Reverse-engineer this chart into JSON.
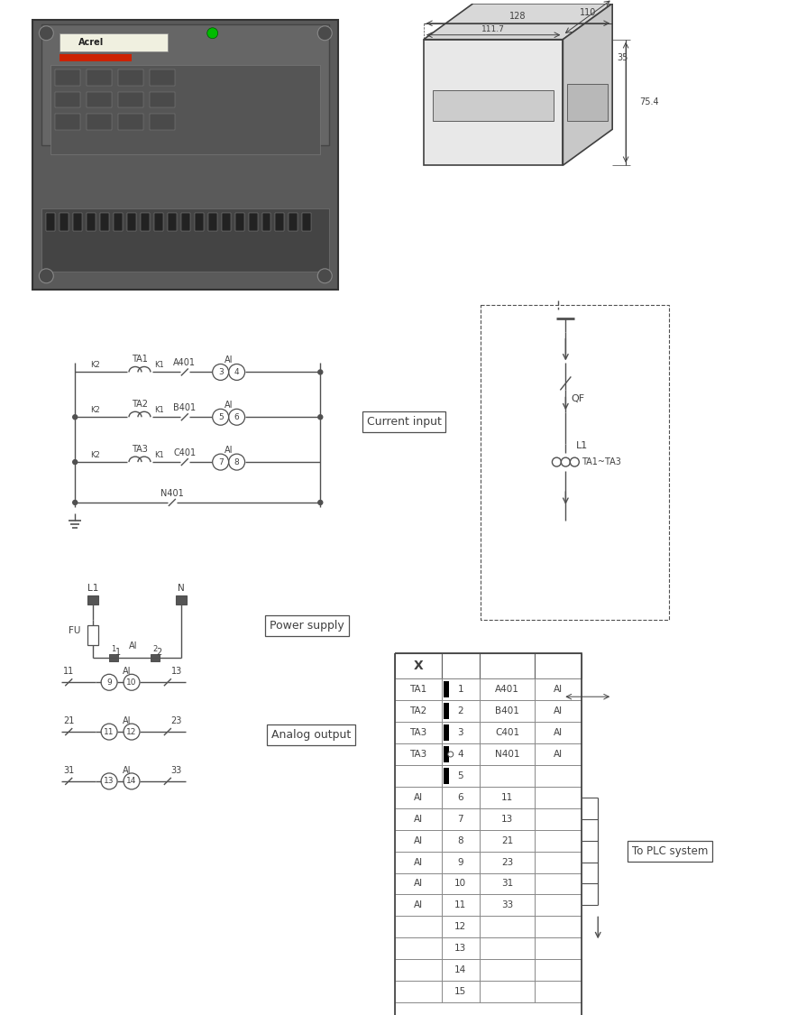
{
  "bg_color": "#ffffff",
  "line_color": "#505050",
  "label_color": "#404040",
  "table_rows": [
    {
      "col1": "TA1",
      "col2": "1",
      "col3": "A401",
      "col4": "AI"
    },
    {
      "col1": "TA2",
      "col2": "2",
      "col3": "B401",
      "col4": "AI"
    },
    {
      "col1": "TA3",
      "col2": "3",
      "col3": "C401",
      "col4": "AI"
    },
    {
      "col1": "TA3",
      "col2": "4",
      "col3": "N401",
      "col4": "AI"
    },
    {
      "col1": "",
      "col2": "5",
      "col3": "",
      "col4": ""
    },
    {
      "col1": "AI",
      "col2": "6",
      "col3": "11",
      "col4": ""
    },
    {
      "col1": "AI",
      "col2": "7",
      "col3": "13",
      "col4": ""
    },
    {
      "col1": "AI",
      "col2": "8",
      "col3": "21",
      "col4": ""
    },
    {
      "col1": "AI",
      "col2": "9",
      "col3": "23",
      "col4": ""
    },
    {
      "col1": "AI",
      "col2": "10",
      "col3": "31",
      "col4": ""
    },
    {
      "col1": "AI",
      "col2": "11",
      "col3": "33",
      "col4": ""
    },
    {
      "col1": "",
      "col2": "12",
      "col3": "",
      "col4": ""
    },
    {
      "col1": "",
      "col2": "13",
      "col3": "",
      "col4": ""
    },
    {
      "col1": "",
      "col2": "14",
      "col3": "",
      "col4": ""
    },
    {
      "col1": "",
      "col2": "15",
      "col3": "",
      "col4": ""
    }
  ],
  "dim_128": "128",
  "dim_1117": "111.7",
  "dim_110": "110",
  "dim_35": "35",
  "dim_754": "75.4",
  "current_input_label": "Current input",
  "power_supply_label": "Power supply",
  "analog_output_label": "Analog output",
  "plc_label": "To PLC system"
}
